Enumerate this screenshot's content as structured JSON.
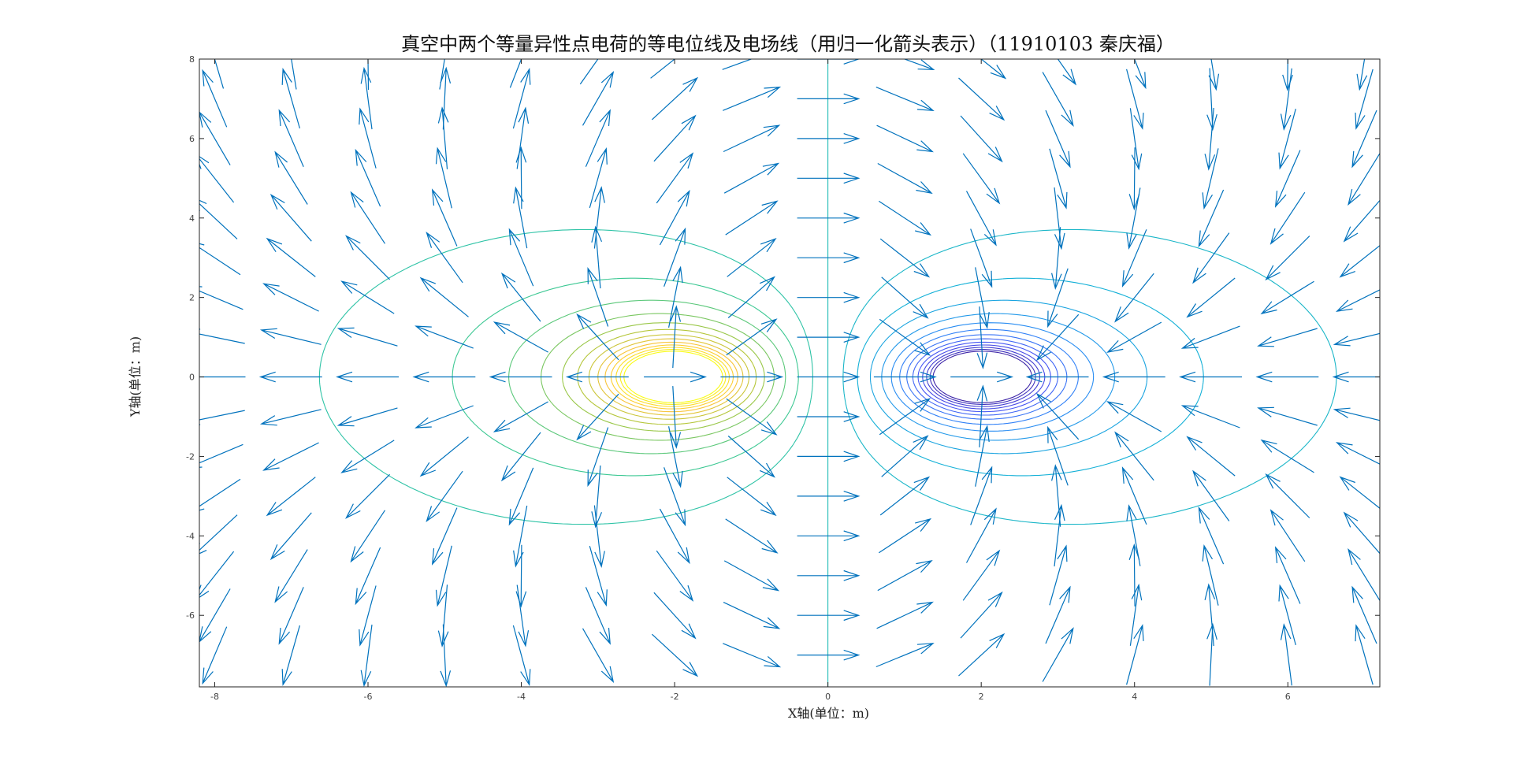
{
  "chart_data": {
    "type": "contour",
    "title": "真空中两个等量异性点电荷的等电位线及电场线（用归一化箭头表示）（11910103 秦庆福）",
    "xlabel": "X轴(单位：m)",
    "ylabel": "Y轴(单位：m)",
    "xlim": [
      -8.2,
      7.2
    ],
    "ylim": [
      -7.8,
      8
    ],
    "xticks": [
      -8,
      -6,
      -4,
      -2,
      0,
      2,
      4,
      6
    ],
    "yticks": [
      -6,
      -4,
      -2,
      0,
      2,
      4,
      6,
      8
    ],
    "charges": [
      {
        "x": -2,
        "y": 0,
        "sign": "+"
      },
      {
        "x": 2,
        "y": 0,
        "sign": "-"
      }
    ],
    "contour_levels": [
      -1.3,
      -1.2,
      -1.1,
      -1.0,
      -0.9,
      -0.8,
      -0.7,
      -0.6,
      -0.5,
      -0.4,
      -0.3,
      -0.2,
      -0.1,
      0,
      0.1,
      0.2,
      0.3,
      0.4,
      0.5,
      0.6,
      0.7,
      0.8,
      0.9,
      1.0,
      1.1,
      1.2,
      1.3
    ],
    "quiver_grid_step": 1,
    "colormap": "parula",
    "arrow_color": "#0072bd",
    "grid": false
  }
}
